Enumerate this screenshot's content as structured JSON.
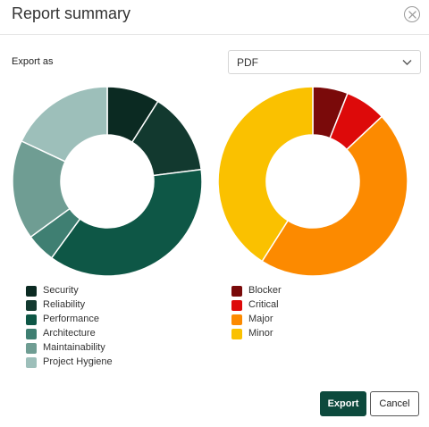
{
  "dialog": {
    "title": "Report summary",
    "close_icon": "close-circle-icon",
    "export_as_label": "Export as",
    "format_select": {
      "value": "PDF",
      "icon": "chevron-down-icon"
    },
    "buttons": {
      "export": "Export",
      "cancel": "Cancel"
    },
    "colors": {
      "primary": "#0d4a3d"
    }
  },
  "chart_data": [
    {
      "type": "pie",
      "donut": true,
      "categories": [
        "Security",
        "Reliability",
        "Performance",
        "Architecture",
        "Maintainability",
        "Project Hygiene"
      ],
      "values": [
        9,
        14,
        37,
        5,
        17,
        18
      ],
      "colors": [
        "#0b2a22",
        "#12392f",
        "#0e5746",
        "#3f7f72",
        "#6f9d93",
        "#9dbfba"
      ],
      "legend": "bottom-left"
    },
    {
      "type": "pie",
      "donut": true,
      "categories": [
        "Blocker",
        "Critical",
        "Major",
        "Minor"
      ],
      "values": [
        6,
        7,
        46,
        41
      ],
      "colors": [
        "#7a0a0a",
        "#dd0a0a",
        "#fc8a00",
        "#fac100"
      ],
      "legend": "bottom-left"
    }
  ]
}
